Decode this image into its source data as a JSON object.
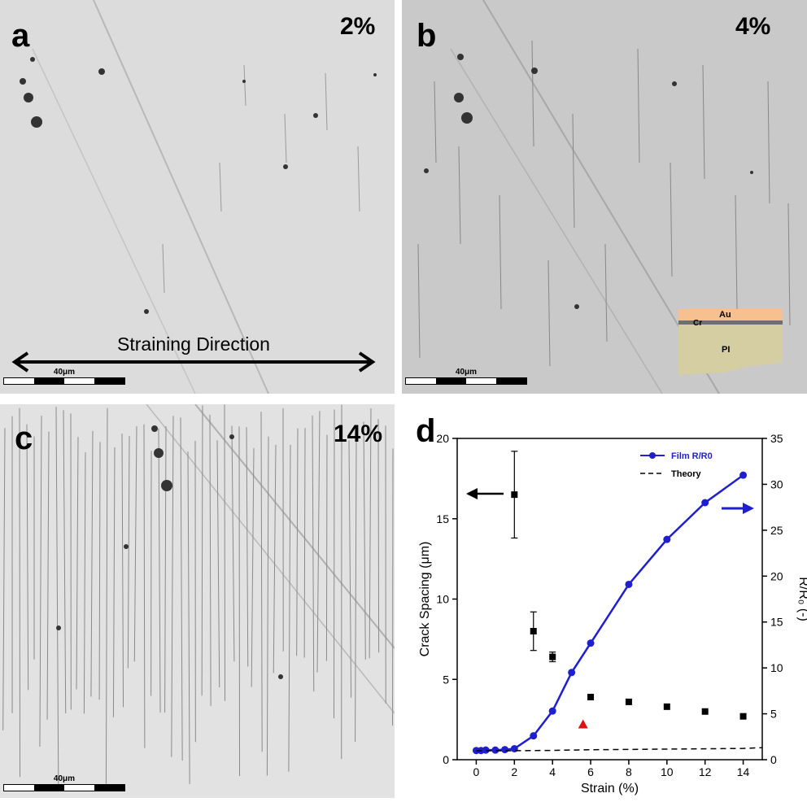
{
  "panels": {
    "a": {
      "letter": "a",
      "strain": "2%",
      "scale": "40μm",
      "direction": "Straining Direction"
    },
    "b": {
      "letter": "b",
      "strain": "4%",
      "scale": "40μm",
      "inset_layers": [
        "Au",
        "Cr",
        "PI"
      ],
      "inset_colors": {
        "au": "#f6c08f",
        "cr": "#6f6f6f",
        "pi": "#d6cea3"
      }
    },
    "c": {
      "letter": "c",
      "strain": "14%",
      "scale": "40μm"
    }
  },
  "chart_data": {
    "letter": "d",
    "type": "scatter",
    "xlabel": "Strain (%)",
    "ylabel": "Crack Spacing (μm)",
    "y2label": "R/R₀ (-)",
    "xlim": [
      -1,
      15
    ],
    "ylim": [
      0,
      20
    ],
    "y2lim": [
      0,
      35
    ],
    "xticks": [
      0,
      2,
      4,
      6,
      8,
      10,
      12,
      14
    ],
    "yticks": [
      0,
      5,
      10,
      15,
      20
    ],
    "y2ticks": [
      0,
      5,
      10,
      15,
      20,
      25,
      30,
      35
    ],
    "legend_position": "top-right",
    "series": [
      {
        "name": "Film R/R0",
        "axis": "right",
        "type": "line",
        "color": "#1f1fd0",
        "x": [
          0,
          0.25,
          0.5,
          1,
          1.5,
          2,
          3,
          4,
          5,
          6,
          8,
          10,
          12,
          14
        ],
        "y": [
          1.0,
          1.0,
          1.05,
          1.05,
          1.1,
          1.2,
          2.6,
          5.3,
          9.5,
          12.7,
          19.1,
          24.0,
          28.0,
          31.0
        ]
      },
      {
        "name": "Theory",
        "axis": "left",
        "type": "dashed-line",
        "color": "#000000",
        "x": [
          0,
          2,
          4,
          6,
          8,
          10,
          12,
          14,
          15
        ],
        "y": [
          0.55,
          0.56,
          0.58,
          0.62,
          0.64,
          0.66,
          0.68,
          0.7,
          0.75
        ]
      },
      {
        "axis": "left",
        "type": "scatter-square",
        "color": "#000000",
        "x": [
          2,
          3,
          4,
          6,
          8,
          10,
          12,
          14
        ],
        "y": [
          16.5,
          8.0,
          6.4,
          3.9,
          3.6,
          3.3,
          3.0,
          2.7
        ],
        "err": [
          2.7,
          1.2,
          0.3,
          0,
          0,
          0,
          0,
          0
        ]
      },
      {
        "axis": "left",
        "type": "scatter-triangle",
        "color": "#e01010",
        "x": [
          5.6
        ],
        "y": [
          2.2
        ]
      }
    ]
  }
}
